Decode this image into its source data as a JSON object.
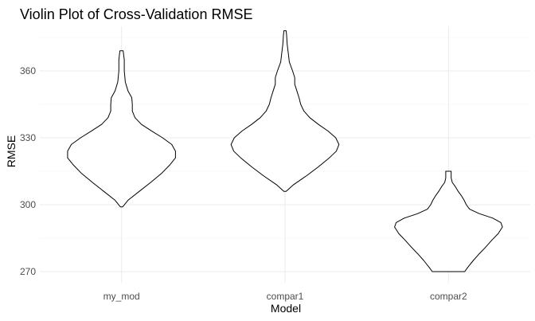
{
  "chart_data": {
    "type": "violin",
    "title": "Violin Plot of Cross-Validation RMSE",
    "xlabel": "Model",
    "ylabel": "RMSE",
    "categories": [
      "my_mod",
      "compar1",
      "compar2"
    ],
    "ylim": [
      265,
      380
    ],
    "y_ticks": [
      270,
      300,
      330,
      360
    ],
    "grid": true,
    "legend": "none",
    "violins": [
      {
        "name": "my_mod",
        "profile": [
          [
            299,
            0.02
          ],
          [
            302,
            0.12
          ],
          [
            306,
            0.33
          ],
          [
            310,
            0.54
          ],
          [
            314,
            0.74
          ],
          [
            318,
            0.9
          ],
          [
            321,
            1.0
          ],
          [
            324,
            1.0
          ],
          [
            327,
            0.93
          ],
          [
            330,
            0.76
          ],
          [
            333,
            0.56
          ],
          [
            336,
            0.37
          ],
          [
            339,
            0.25
          ],
          [
            342,
            0.2
          ],
          [
            345,
            0.2
          ],
          [
            348,
            0.19
          ],
          [
            351,
            0.12
          ],
          [
            355,
            0.07
          ],
          [
            360,
            0.05
          ],
          [
            365,
            0.05
          ],
          [
            369,
            0.03
          ]
        ]
      },
      {
        "name": "compar1",
        "profile": [
          [
            306,
            0.02
          ],
          [
            309,
            0.16
          ],
          [
            313,
            0.4
          ],
          [
            317,
            0.62
          ],
          [
            321,
            0.82
          ],
          [
            324,
            0.95
          ],
          [
            327,
            1.0
          ],
          [
            330,
            0.94
          ],
          [
            333,
            0.8
          ],
          [
            336,
            0.62
          ],
          [
            339,
            0.46
          ],
          [
            342,
            0.35
          ],
          [
            345,
            0.29
          ],
          [
            348,
            0.26
          ],
          [
            351,
            0.22
          ],
          [
            354,
            0.18
          ],
          [
            357,
            0.18
          ],
          [
            360,
            0.14
          ],
          [
            364,
            0.08
          ],
          [
            368,
            0.06
          ],
          [
            372,
            0.04
          ],
          [
            376,
            0.03
          ],
          [
            378,
            0.02
          ]
        ]
      },
      {
        "name": "compar2",
        "profile": [
          [
            270,
            0.3
          ],
          [
            272,
            0.36
          ],
          [
            275,
            0.46
          ],
          [
            278,
            0.57
          ],
          [
            281,
            0.69
          ],
          [
            284,
            0.8
          ],
          [
            287,
            0.92
          ],
          [
            290,
            1.0
          ],
          [
            292,
            0.97
          ],
          [
            294,
            0.82
          ],
          [
            296,
            0.57
          ],
          [
            298,
            0.39
          ],
          [
            300,
            0.33
          ],
          [
            302,
            0.29
          ],
          [
            304,
            0.24
          ],
          [
            306,
            0.18
          ],
          [
            308,
            0.13
          ],
          [
            310,
            0.07
          ],
          [
            312,
            0.05
          ],
          [
            315,
            0.05
          ]
        ]
      }
    ],
    "colors": {
      "fill": "#ffffff",
      "outline": "#000000",
      "grid": "#ebebeb",
      "tick_text": "#4d4d4d"
    }
  }
}
